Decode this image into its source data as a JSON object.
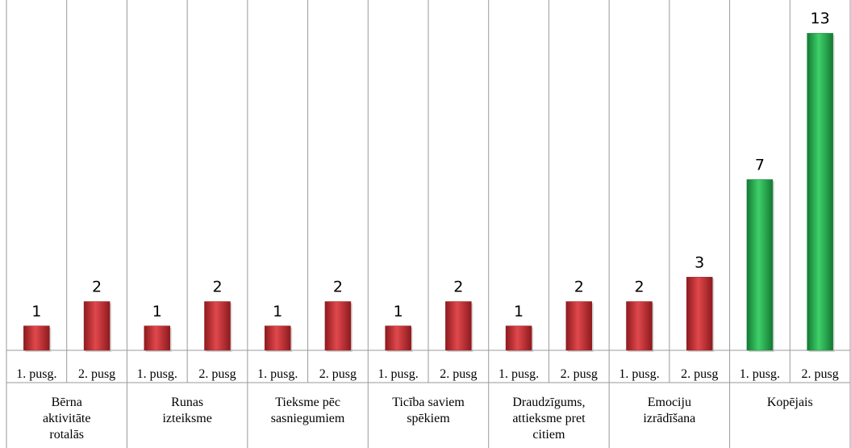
{
  "chart_data": {
    "type": "bar",
    "title": "",
    "xlabel": "",
    "ylabel": "",
    "ylim": [
      0,
      13.7
    ],
    "grid": false,
    "legend": "none",
    "groups": [
      {
        "label": "Bērna aktivitāte rotalās",
        "lines": [
          "Bērna",
          "aktivitāte",
          "rotalās"
        ]
      },
      {
        "label": "Runas izteiksme",
        "lines": [
          "Runas",
          "izteiksme"
        ]
      },
      {
        "label": "Tieksme pēc sasniegumiem",
        "lines": [
          "Tieksme pēc",
          "sasniegumiem"
        ]
      },
      {
        "label": "Ticība saviem spēkiem",
        "lines": [
          "Ticība saviem",
          "spēkiem"
        ]
      },
      {
        "label": "Draudzīgums, attieksme pret citiem",
        "lines": [
          "Draudzīgums,",
          "attieksme pret",
          "citiem"
        ]
      },
      {
        "label": "Emociju izrādīšana",
        "lines": [
          "Emociju",
          "izrādīšana"
        ]
      },
      {
        "label": "Kopējais",
        "lines": [
          "Kopējais"
        ]
      }
    ],
    "categories": [
      "1. pusg.",
      "2. pusg",
      "1. pusg.",
      "2. pusg",
      "1. pusg.",
      "2. pusg",
      "1. pusg.",
      "2. pusg",
      "1. pusg.",
      "2. pusg",
      "1. pusg.",
      "2. pusg",
      "1. pusg.",
      "2. pusg"
    ],
    "values": [
      1,
      2,
      1,
      2,
      1,
      2,
      1,
      2,
      1,
      2,
      2,
      3,
      7,
      13
    ],
    "value_labels": [
      "1",
      "2",
      "1",
      "2",
      "1",
      "2",
      "1",
      "2",
      "1",
      "2",
      "2",
      "3",
      "7",
      "13"
    ],
    "bar_colors": [
      "#c0272d",
      "#c0272d",
      "#c0272d",
      "#c0272d",
      "#c0272d",
      "#c0272d",
      "#c0272d",
      "#c0272d",
      "#c0272d",
      "#c0272d",
      "#c0272d",
      "#c0272d",
      "#1fa64a",
      "#1fa64a"
    ]
  }
}
